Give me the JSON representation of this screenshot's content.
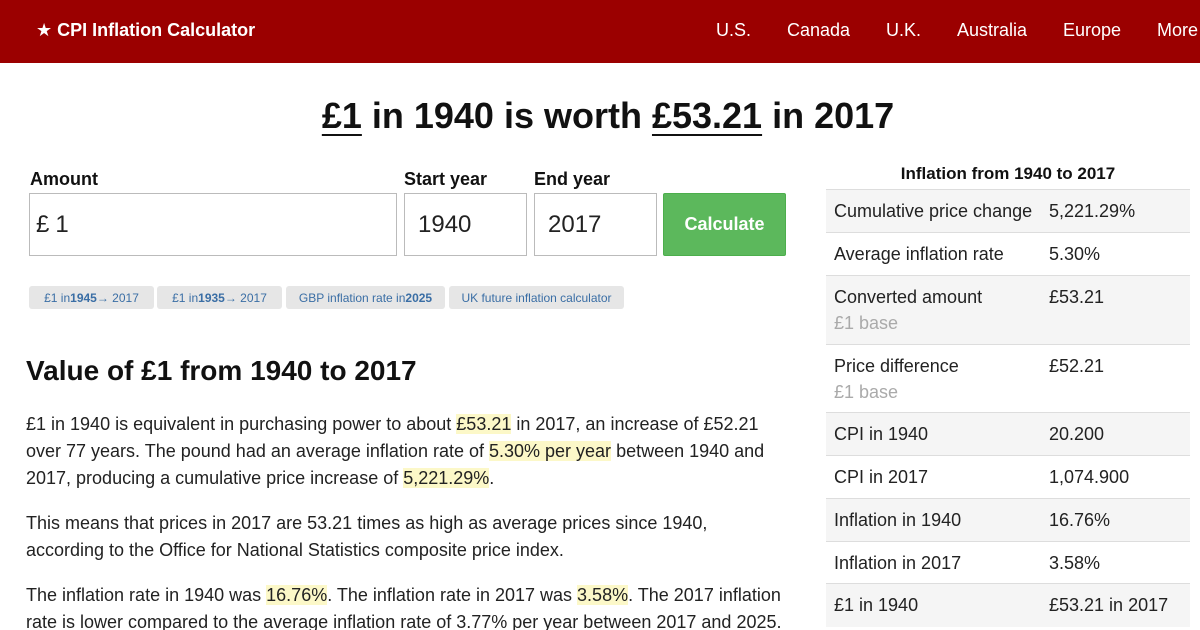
{
  "nav": {
    "brand": "★ CPI Inflation Calculator",
    "links": [
      "U.S.",
      "Canada",
      "U.K.",
      "Australia",
      "Europe",
      "More"
    ]
  },
  "headline": {
    "amount": "£1",
    "mid": " in 1940 is worth ",
    "value": "£53.21",
    "tail": " in 2017"
  },
  "form": {
    "amount_label": "Amount",
    "currency_prefix": "£",
    "amount_value": "1",
    "start_label": "Start year",
    "start_value": "1940",
    "end_label": "End year",
    "end_value": "2017",
    "calculate_label": "Calculate"
  },
  "chips": [
    {
      "pre": "£1 in ",
      "bold": "1945",
      "post": " → 2017"
    },
    {
      "pre": "£1 in ",
      "bold": "1935",
      "post": " → 2017"
    },
    {
      "pre": "GBP inflation rate in ",
      "bold": "2025",
      "post": ""
    },
    {
      "pre": "UK future inflation calculator",
      "bold": "",
      "post": ""
    }
  ],
  "article": {
    "heading": "Value of £1 from 1940 to 2017",
    "p1": {
      "t1": "£1 in 1940 is equivalent in purchasing power to about ",
      "h1": "£53.21",
      "t2": " in 2017, an increase of £52.21 over 77 years. The pound had an average inflation rate of ",
      "h2": "5.30% per year",
      "t3": " between 1940 and 2017, producing a cumulative price increase of ",
      "h3": "5,221.29%",
      "t4": "."
    },
    "p2": "This means that prices in 2017 are 53.21 times as high as average prices since 1940, according to the Office for National Statistics composite price index.",
    "p3": {
      "t1": "The inflation rate in 1940 was ",
      "h1": "16.76%",
      "t2": ". The inflation rate in 2017 was ",
      "h2": "3.58%",
      "t3": ". The 2017 inflation rate is lower compared to the average inflation rate of 3.77% per year between 2017 and 2025."
    }
  },
  "sidebar": {
    "title": "Inflation from 1940 to 2017",
    "rows": [
      {
        "label": "Cumulative price change",
        "sub": "",
        "value": "5,221.29%"
      },
      {
        "label": "Average inflation rate",
        "sub": "",
        "value": "5.30%"
      },
      {
        "label": "Converted amount",
        "sub": "£1 base",
        "value": "£53.21"
      },
      {
        "label": "Price difference",
        "sub": "£1 base",
        "value": "£52.21"
      },
      {
        "label": "CPI in 1940",
        "sub": "",
        "value": "20.200"
      },
      {
        "label": "CPI in 2017",
        "sub": "",
        "value": "1,074.900"
      },
      {
        "label": "Inflation in 1940",
        "sub": "",
        "value": "16.76%"
      },
      {
        "label": "Inflation in 2017",
        "sub": "",
        "value": "3.58%"
      },
      {
        "label": "£1 in 1940",
        "sub": "",
        "value": "£53.21 in 2017"
      }
    ]
  },
  "colors": {
    "nav_bg": "#9b0000",
    "button_bg": "#5cb85c",
    "highlight_bg": "#fcf8c8",
    "chip_text": "#3a6ea5"
  }
}
